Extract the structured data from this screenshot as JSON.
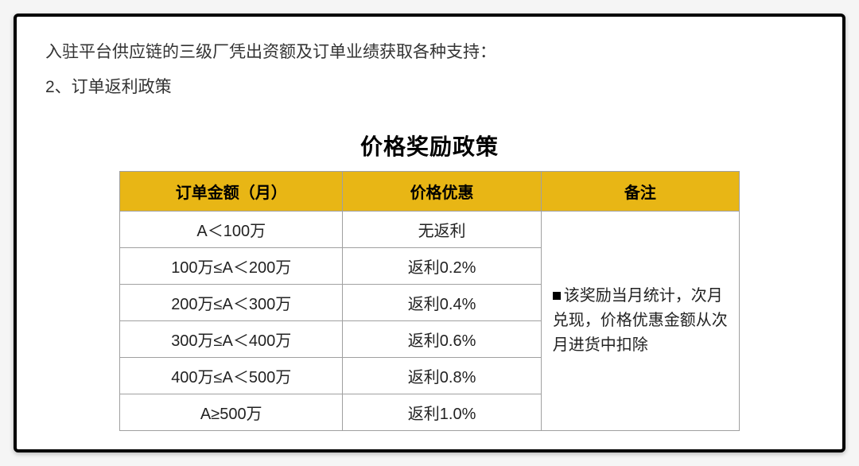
{
  "header": {
    "intro": "入驻平台供应链的三级厂凭出资额及订单业绩获取各种支持：",
    "sub": "2、订单返利政策"
  },
  "table": {
    "title": "价格奖励政策",
    "columns": [
      "订单金额（月）",
      "价格优惠",
      "备注"
    ],
    "rows": [
      {
        "amount": "A＜100万",
        "discount": "无返利"
      },
      {
        "amount": "100万≤A＜200万",
        "discount": "返利0.2%"
      },
      {
        "amount": "200万≤A＜300万",
        "discount": "返利0.4%"
      },
      {
        "amount": "300万≤A＜400万",
        "discount": "返利0.6%"
      },
      {
        "amount": "400万≤A＜500万",
        "discount": "返利0.8%"
      },
      {
        "amount": "A≥500万",
        "discount": "返利1.0%"
      }
    ],
    "note": "该奖励当月统计，次月兑现，价格优惠金额从次月进货中扣除",
    "header_bg": "#e8b615",
    "border_color": "#a0a0a0",
    "title_fontsize": 28,
    "cell_fontsize": 20
  }
}
